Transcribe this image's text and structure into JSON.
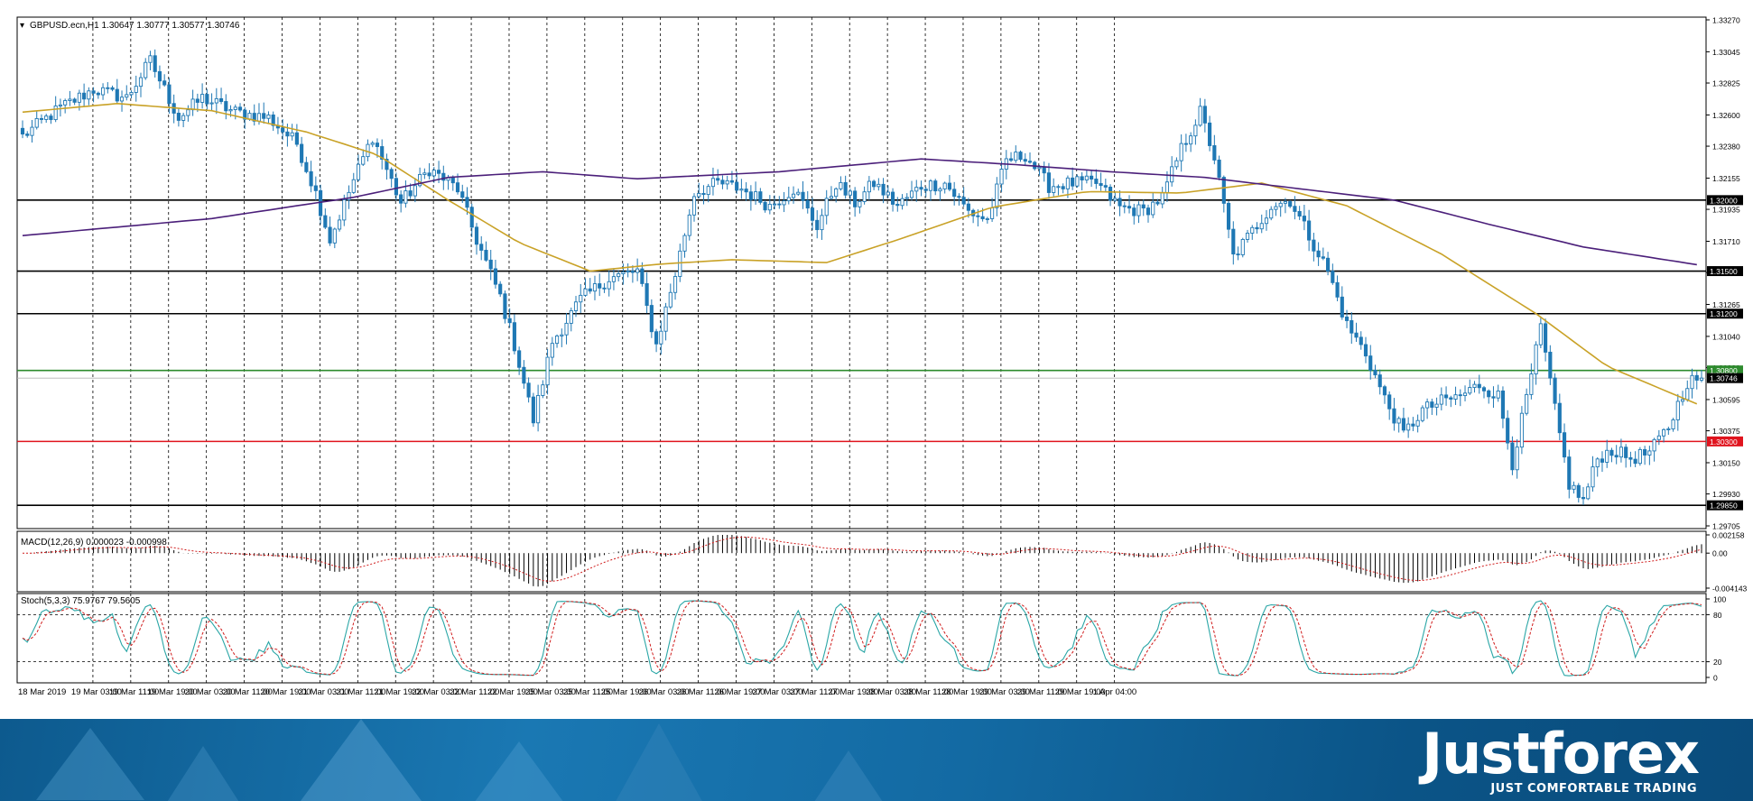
{
  "chart_data": [
    {
      "type": "candlestick",
      "symbol_info": "GBPUSD.ecn,H1  1.30647 1.30777 1.30577 1.30746",
      "y_ticks": [
        "1.33270",
        "1.33045",
        "1.32825",
        "1.32600",
        "1.32380",
        "1.32155",
        "1.31935",
        "1.31710",
        "1.31490",
        "1.31265",
        "1.31040",
        "1.30820",
        "1.30595",
        "1.30375",
        "1.30150",
        "1.29930",
        "1.29705"
      ],
      "ylim": [
        1.29705,
        1.3327
      ],
      "x_ticks": [
        "18 Mar 2019",
        "19 Mar 03:00",
        "19 Mar 11:00",
        "19 Mar 19:00",
        "20 Mar 03:00",
        "20 Mar 11:00",
        "20 Mar 19:00",
        "21 Mar 03:00",
        "21 Mar 11:00",
        "21 Mar 19:00",
        "22 Mar 03:00",
        "22 Mar 11:00",
        "22 Mar 19:00",
        "25 Mar 03:00",
        "25 Mar 11:00",
        "25 Mar 19:00",
        "26 Mar 03:00",
        "26 Mar 11:00",
        "26 Mar 19:00",
        "27 Mar 03:00",
        "27 Mar 11:00",
        "27 Mar 19:00",
        "28 Mar 03:00",
        "28 Mar 11:00",
        "28 Mar 19:00",
        "29 Mar 03:00",
        "29 Mar 11:00",
        "29 Mar 19:00",
        "1 Apr 04:00"
      ],
      "grid": "vertical dashed",
      "horizontal_levels": [
        {
          "label": "1.32000",
          "value": 1.32,
          "color": "#000000"
        },
        {
          "label": "1.31500",
          "value": 1.315,
          "color": "#000000"
        },
        {
          "label": "1.31200",
          "value": 1.312,
          "color": "#000000"
        },
        {
          "label": "1.30800",
          "value": 1.308,
          "color": "#2e8b2e"
        },
        {
          "label": "1.30300",
          "value": 1.303,
          "color": "#e0141e"
        },
        {
          "label": "1.29850",
          "value": 1.2985,
          "color": "#000000"
        }
      ],
      "current_price": {
        "label": "1.30746",
        "value": 1.30746
      },
      "anchors": [
        [
          0,
          1.3245
        ],
        [
          8,
          1.3265
        ],
        [
          15,
          1.3278
        ],
        [
          22,
          1.3272
        ],
        [
          27,
          1.3298
        ],
        [
          33,
          1.3258
        ],
        [
          38,
          1.3272
        ],
        [
          45,
          1.3262
        ],
        [
          52,
          1.3258
        ],
        [
          58,
          1.324
        ],
        [
          62,
          1.3205
        ],
        [
          65,
          1.3172
        ],
        [
          70,
          1.3214
        ],
        [
          74,
          1.3245
        ],
        [
          80,
          1.3198
        ],
        [
          86,
          1.3222
        ],
        [
          92,
          1.3208
        ],
        [
          96,
          1.3172
        ],
        [
          101,
          1.3132
        ],
        [
          104,
          1.3098
        ],
        [
          108,
          1.3045
        ],
        [
          112,
          1.31
        ],
        [
          118,
          1.313
        ],
        [
          124,
          1.3145
        ],
        [
          130,
          1.315
        ],
        [
          134,
          1.3098
        ],
        [
          138,
          1.3148
        ],
        [
          142,
          1.3205
        ],
        [
          147,
          1.3212
        ],
        [
          152,
          1.3208
        ],
        [
          158,
          1.3196
        ],
        [
          163,
          1.3208
        ],
        [
          168,
          1.3182
        ],
        [
          172,
          1.3212
        ],
        [
          176,
          1.3198
        ],
        [
          180,
          1.3212
        ],
        [
          185,
          1.3196
        ],
        [
          190,
          1.321
        ],
        [
          195,
          1.3212
        ],
        [
          200,
          1.3192
        ],
        [
          204,
          1.3186
        ],
        [
          208,
          1.3228
        ],
        [
          212,
          1.3232
        ],
        [
          217,
          1.321
        ],
        [
          222,
          1.3212
        ],
        [
          227,
          1.3212
        ],
        [
          232,
          1.3195
        ],
        [
          237,
          1.3192
        ],
        [
          241,
          1.3202
        ],
        [
          245,
          1.3236
        ],
        [
          249,
          1.3262
        ],
        [
          252,
          1.323
        ],
        [
          256,
          1.316
        ],
        [
          260,
          1.3178
        ],
        [
          264,
          1.3196
        ],
        [
          268,
          1.32
        ],
        [
          272,
          1.3175
        ],
        [
          276,
          1.315
        ],
        [
          280,
          1.3112
        ],
        [
          284,
          1.3092
        ],
        [
          288,
          1.306
        ],
        [
          292,
          1.3035
        ],
        [
          296,
          1.3052
        ],
        [
          300,
          1.3058
        ],
        [
          304,
          1.3062
        ],
        [
          308,
          1.307
        ],
        [
          312,
          1.3062
        ],
        [
          315,
          1.3015
        ],
        [
          318,
          1.306
        ],
        [
          321,
          1.311
        ],
        [
          324,
          1.3052
        ],
        [
          327,
          1.3
        ],
        [
          330,
          1.2988
        ],
        [
          333,
          1.3018
        ],
        [
          336,
          1.3024
        ],
        [
          340,
          1.3018
        ],
        [
          344,
          1.3022
        ],
        [
          348,
          1.304
        ],
        [
          352,
          1.3072
        ],
        [
          355,
          1.3075
        ]
      ],
      "sma_fast_anchors": [
        [
          0,
          1.3262
        ],
        [
          20,
          1.3268
        ],
        [
          40,
          1.3263
        ],
        [
          60,
          1.3248
        ],
        [
          75,
          1.3232
        ],
        [
          90,
          1.32
        ],
        [
          105,
          1.317
        ],
        [
          120,
          1.315
        ],
        [
          135,
          1.3155
        ],
        [
          150,
          1.3158
        ],
        [
          170,
          1.3156
        ],
        [
          185,
          1.3172
        ],
        [
          205,
          1.3195
        ],
        [
          225,
          1.3206
        ],
        [
          245,
          1.3205
        ],
        [
          262,
          1.3212
        ],
        [
          280,
          1.3196
        ],
        [
          300,
          1.3162
        ],
        [
          320,
          1.312
        ],
        [
          335,
          1.3083
        ],
        [
          355,
          1.3055
        ]
      ],
      "sma_slow_anchors": [
        [
          0,
          1.3175
        ],
        [
          40,
          1.3187
        ],
        [
          70,
          1.3202
        ],
        [
          90,
          1.3216
        ],
        [
          110,
          1.322
        ],
        [
          130,
          1.3215
        ],
        [
          160,
          1.322
        ],
        [
          190,
          1.3229
        ],
        [
          210,
          1.3225
        ],
        [
          230,
          1.322
        ],
        [
          250,
          1.3216
        ],
        [
          270,
          1.3208
        ],
        [
          290,
          1.32
        ],
        [
          310,
          1.3183
        ],
        [
          330,
          1.3167
        ],
        [
          355,
          1.3154
        ]
      ]
    },
    {
      "type": "histogram",
      "indicator_label": "MACD(12,26,9) 0.000023 -0.000998",
      "y_ticks": [
        "0.002158",
        "0.00",
        "-0.004143"
      ],
      "ylim": [
        -0.004143,
        0.002158
      ]
    },
    {
      "type": "line",
      "indicator_label": "Stoch(5,3,3) 75.9767 79.5605",
      "y_ticks": [
        "100",
        "80",
        "20",
        "0"
      ],
      "ylim": [
        0,
        100
      ],
      "levels": [
        80,
        20
      ]
    }
  ],
  "brand": {
    "name": "Justforex",
    "tagline": "JUST COMFORTABLE TRADING"
  },
  "colors": {
    "candle": "#1f78b4",
    "sma_fast": "#c9a227",
    "sma_slow": "#4b1f7a",
    "macd_signal": "#d01c1c",
    "stoch_main": "#2aa6a6",
    "stoch_signal": "#d01c1c"
  }
}
